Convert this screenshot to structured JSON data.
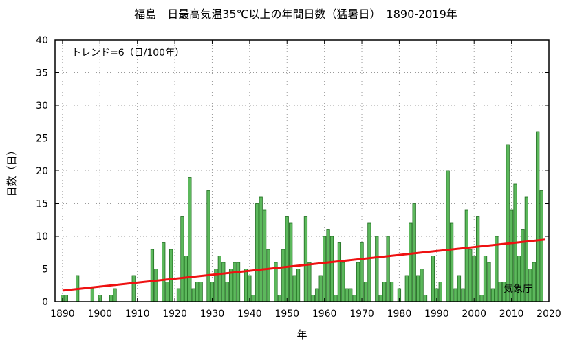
{
  "chart_data": {
    "type": "bar",
    "title": "福島　日最高気温35℃以上の年間日数（猛暑日）　1890-2019年",
    "xlabel": "年",
    "ylabel": "日数（日）",
    "trend_label": "トレンド=6（日/100年）",
    "source_label": "気象庁",
    "xlim": [
      1888,
      2020
    ],
    "ylim": [
      0,
      40
    ],
    "xticks": [
      1890,
      1900,
      1910,
      1920,
      1930,
      1940,
      1950,
      1960,
      1970,
      1980,
      1990,
      2000,
      2010,
      2020
    ],
    "yticks": [
      0,
      5,
      10,
      15,
      20,
      25,
      30,
      35,
      40
    ],
    "grid": true,
    "bar_color": "#5cb85c",
    "bar_edge_color": "#1f6b1f",
    "trend_color": "#ee1111",
    "trend_line": {
      "x": [
        1890,
        2019
      ],
      "y": [
        1.7,
        9.5
      ]
    },
    "x": [
      1890,
      1891,
      1892,
      1893,
      1894,
      1895,
      1896,
      1897,
      1898,
      1899,
      1900,
      1901,
      1902,
      1903,
      1904,
      1905,
      1906,
      1907,
      1908,
      1909,
      1910,
      1911,
      1912,
      1913,
      1914,
      1915,
      1916,
      1917,
      1918,
      1919,
      1920,
      1921,
      1922,
      1923,
      1924,
      1925,
      1926,
      1927,
      1928,
      1929,
      1930,
      1931,
      1932,
      1933,
      1934,
      1935,
      1936,
      1937,
      1938,
      1939,
      1940,
      1941,
      1942,
      1943,
      1944,
      1945,
      1946,
      1947,
      1948,
      1949,
      1950,
      1951,
      1952,
      1953,
      1954,
      1955,
      1956,
      1957,
      1958,
      1959,
      1960,
      1961,
      1962,
      1963,
      1964,
      1965,
      1966,
      1967,
      1968,
      1969,
      1970,
      1971,
      1972,
      1973,
      1974,
      1975,
      1976,
      1977,
      1978,
      1979,
      1980,
      1981,
      1982,
      1983,
      1984,
      1985,
      1986,
      1987,
      1988,
      1989,
      1990,
      1991,
      1992,
      1993,
      1994,
      1995,
      1996,
      1997,
      1998,
      1999,
      2000,
      2001,
      2002,
      2003,
      2004,
      2005,
      2006,
      2007,
      2008,
      2009,
      2010,
      2011,
      2012,
      2013,
      2014,
      2015,
      2016,
      2017,
      2018,
      2019
    ],
    "values": [
      1,
      1,
      0,
      0,
      4,
      0,
      0,
      0,
      2,
      0,
      1,
      0,
      0,
      1,
      2,
      0,
      0,
      0,
      0,
      4,
      0,
      0,
      0,
      0,
      8,
      5,
      0,
      9,
      3,
      8,
      0,
      2,
      13,
      7,
      19,
      2,
      3,
      3,
      0,
      17,
      3,
      5,
      7,
      6,
      3,
      5,
      6,
      6,
      0,
      5,
      4,
      1,
      15,
      16,
      14,
      8,
      0,
      6,
      1,
      8,
      13,
      12,
      4,
      5,
      0,
      13,
      6,
      1,
      2,
      4,
      10,
      11,
      10,
      1,
      9,
      6,
      2,
      2,
      1,
      6,
      9,
      3,
      12,
      0,
      10,
      1,
      3,
      10,
      3,
      0,
      2,
      0,
      4,
      12,
      15,
      4,
      5,
      1,
      0,
      7,
      2,
      3,
      0,
      20,
      12,
      2,
      4,
      2,
      14,
      8,
      7,
      13,
      1,
      7,
      6,
      2,
      10,
      3,
      3,
      24,
      14,
      18,
      7,
      11,
      16,
      5,
      6,
      26,
      17,
      0
    ]
  }
}
